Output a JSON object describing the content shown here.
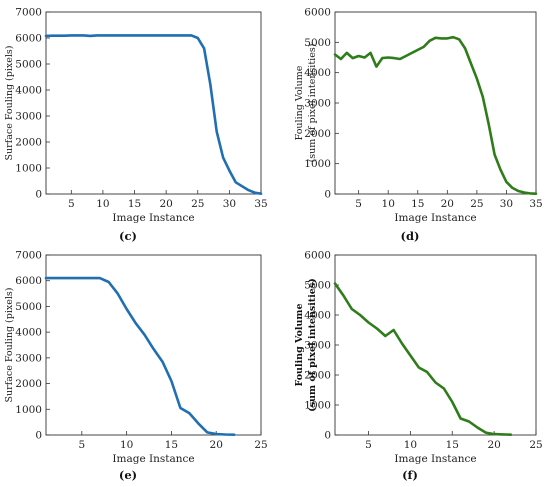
{
  "chart_data": [
    {
      "panel": "(c)",
      "type": "line",
      "xlabel": "Image Instance",
      "ylabel": [
        "Surface Fouling (pixels)"
      ],
      "xlim": [
        1,
        35
      ],
      "ylim": [
        0,
        7000
      ],
      "xticks": [
        5,
        10,
        15,
        20,
        25,
        30,
        35
      ],
      "yticks": [
        0,
        1000,
        2000,
        3000,
        4000,
        5000,
        6000,
        7000
      ],
      "color": "#1f6fb2",
      "x": [
        1,
        2,
        3,
        4,
        5,
        6,
        7,
        8,
        9,
        10,
        11,
        12,
        13,
        14,
        15,
        16,
        17,
        18,
        19,
        20,
        21,
        22,
        23,
        24,
        25,
        26,
        27,
        28,
        29,
        30,
        31,
        32,
        33,
        34,
        35
      ],
      "y": [
        6080,
        6090,
        6090,
        6090,
        6100,
        6100,
        6100,
        6080,
        6100,
        6100,
        6100,
        6100,
        6100,
        6100,
        6100,
        6100,
        6100,
        6100,
        6100,
        6100,
        6100,
        6100,
        6100,
        6100,
        6000,
        5600,
        4200,
        2400,
        1400,
        900,
        450,
        300,
        150,
        50,
        10
      ]
    },
    {
      "panel": "(d)",
      "type": "line",
      "xlabel": "Image Instance",
      "ylabel": [
        "Fouling Volume",
        "(sum of pixel intensities)"
      ],
      "xlim": [
        1,
        35
      ],
      "ylim": [
        0,
        6000
      ],
      "xticks": [
        5,
        10,
        15,
        20,
        25,
        30,
        35
      ],
      "yticks": [
        0,
        1000,
        2000,
        3000,
        4000,
        5000,
        6000
      ],
      "color": "#2e7d1a",
      "x": [
        1,
        2,
        3,
        4,
        5,
        6,
        7,
        8,
        9,
        10,
        11,
        12,
        13,
        14,
        15,
        16,
        17,
        18,
        19,
        20,
        21,
        22,
        23,
        24,
        25,
        26,
        27,
        28,
        29,
        30,
        31,
        32,
        33,
        34,
        35
      ],
      "y": [
        4600,
        4450,
        4650,
        4480,
        4550,
        4500,
        4650,
        4200,
        4480,
        4500,
        4480,
        4450,
        4550,
        4650,
        4750,
        4850,
        5050,
        5150,
        5130,
        5130,
        5170,
        5100,
        4800,
        4300,
        3800,
        3200,
        2300,
        1300,
        800,
        400,
        200,
        100,
        50,
        20,
        10
      ]
    },
    {
      "panel": "(e)",
      "type": "line",
      "xlabel": "Image Instance",
      "ylabel": [
        "Surface Fouling (pixels)"
      ],
      "xlim": [
        1,
        25
      ],
      "ylim": [
        0,
        7000
      ],
      "xticks": [
        5,
        10,
        15,
        20,
        25
      ],
      "yticks": [
        0,
        1000,
        2000,
        3000,
        4000,
        5000,
        6000,
        7000
      ],
      "color": "#1f6fb2",
      "x": [
        1,
        2,
        3,
        4,
        5,
        6,
        7,
        8,
        9,
        10,
        11,
        12,
        13,
        14,
        15,
        16,
        17,
        18,
        19,
        20,
        21,
        22
      ],
      "y": [
        6100,
        6100,
        6100,
        6100,
        6100,
        6100,
        6100,
        5950,
        5500,
        4900,
        4350,
        3900,
        3350,
        2850,
        2100,
        1050,
        850,
        450,
        100,
        40,
        20,
        10
      ]
    },
    {
      "panel": "(f)",
      "type": "line",
      "xlabel": "Image Instance",
      "ylabel": [
        "Fouling Volume",
        "(sum of pixel intensities)"
      ],
      "xlim": [
        1,
        25
      ],
      "ylim": [
        0,
        6000
      ],
      "xticks": [
        5,
        10,
        15,
        20,
        25
      ],
      "yticks": [
        0,
        1000,
        2000,
        3000,
        4000,
        5000,
        6000
      ],
      "color": "#2e7d1a",
      "x": [
        1,
        2,
        3,
        4,
        5,
        6,
        7,
        8,
        9,
        10,
        11,
        12,
        13,
        14,
        15,
        16,
        17,
        18,
        19,
        20,
        21,
        22
      ],
      "y": [
        5050,
        4650,
        4200,
        4000,
        3750,
        3550,
        3300,
        3500,
        3050,
        2650,
        2250,
        2100,
        1750,
        1550,
        1100,
        550,
        450,
        250,
        80,
        30,
        20,
        10
      ]
    }
  ]
}
